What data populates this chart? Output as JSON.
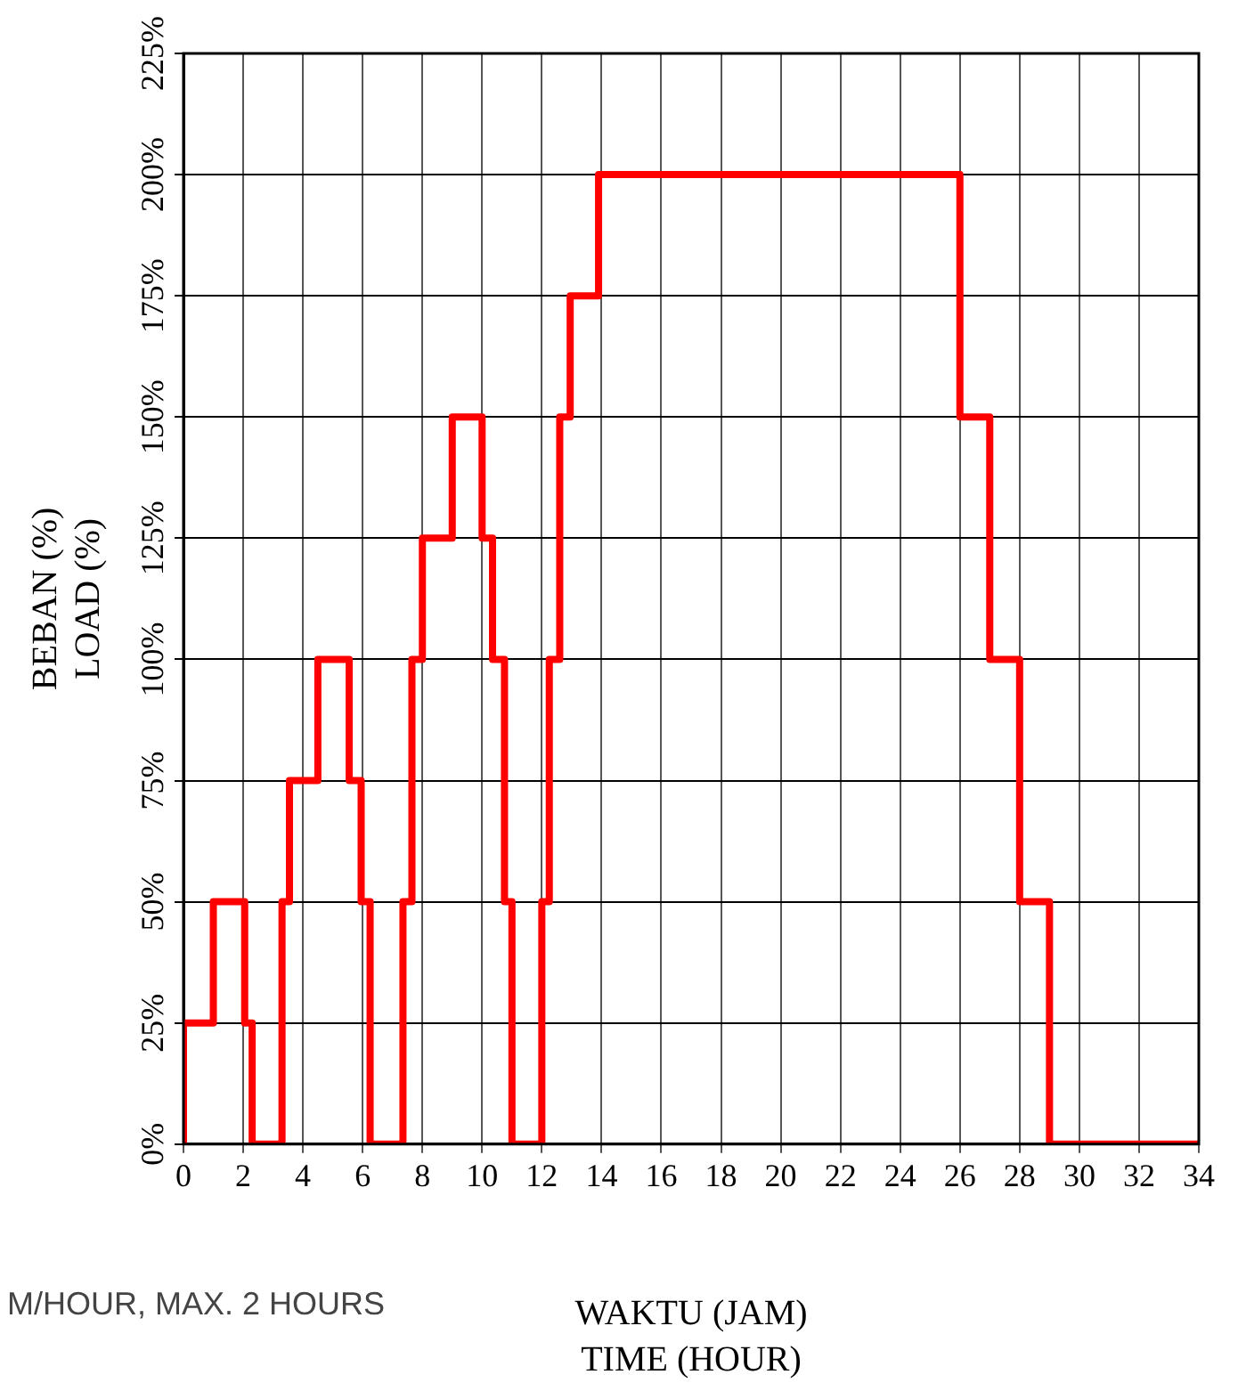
{
  "chart_data": {
    "type": "step",
    "xlabel": "WAKTU (JAM)\nTIME (HOUR)",
    "ylabel": "BEBAN (%)\nLOAD (%)",
    "annotations": [
      "M/HOUR, MAX. 2 HOURS"
    ],
    "x": [
      0,
      0,
      1,
      2.05,
      2.3,
      3.3,
      3.55,
      4.5,
      5.55,
      5.95,
      6.25,
      7.35,
      7.65,
      8,
      9,
      10,
      10.35,
      10.75,
      11,
      12,
      12.25,
      12.6,
      12.95,
      13.9,
      26,
      27,
      28,
      29,
      34
    ],
    "series": [
      {
        "color": "#ff0000",
        "values": [
          0,
          25,
          50,
          25,
          0,
          50,
          75,
          100,
          75,
          50,
          0,
          50,
          100,
          125,
          150,
          125,
          100,
          50,
          0,
          50,
          100,
          150,
          175,
          200,
          150,
          100,
          50,
          0,
          0
        ]
      }
    ],
    "xlim": [
      0,
      34
    ],
    "xticks": [
      0,
      2,
      4,
      6,
      8,
      10,
      12,
      14,
      16,
      18,
      20,
      22,
      24,
      26,
      28,
      30,
      32,
      34
    ],
    "ylim": [
      0,
      225
    ],
    "yticks": [
      {
        "value": 0,
        "label": "0%"
      },
      {
        "value": 25,
        "label": "25%"
      },
      {
        "value": 50,
        "label": "50%"
      },
      {
        "value": 75,
        "label": "75%"
      },
      {
        "value": 100,
        "label": "100%"
      },
      {
        "value": 125,
        "label": "125%"
      },
      {
        "value": 150,
        "label": "150%"
      },
      {
        "value": 175,
        "label": "175%"
      },
      {
        "value": 200,
        "label": "200%"
      },
      {
        "value": 225,
        "label": "225%"
      }
    ],
    "grid": true,
    "legend": false,
    "marker": "none",
    "line_style": "solid"
  }
}
